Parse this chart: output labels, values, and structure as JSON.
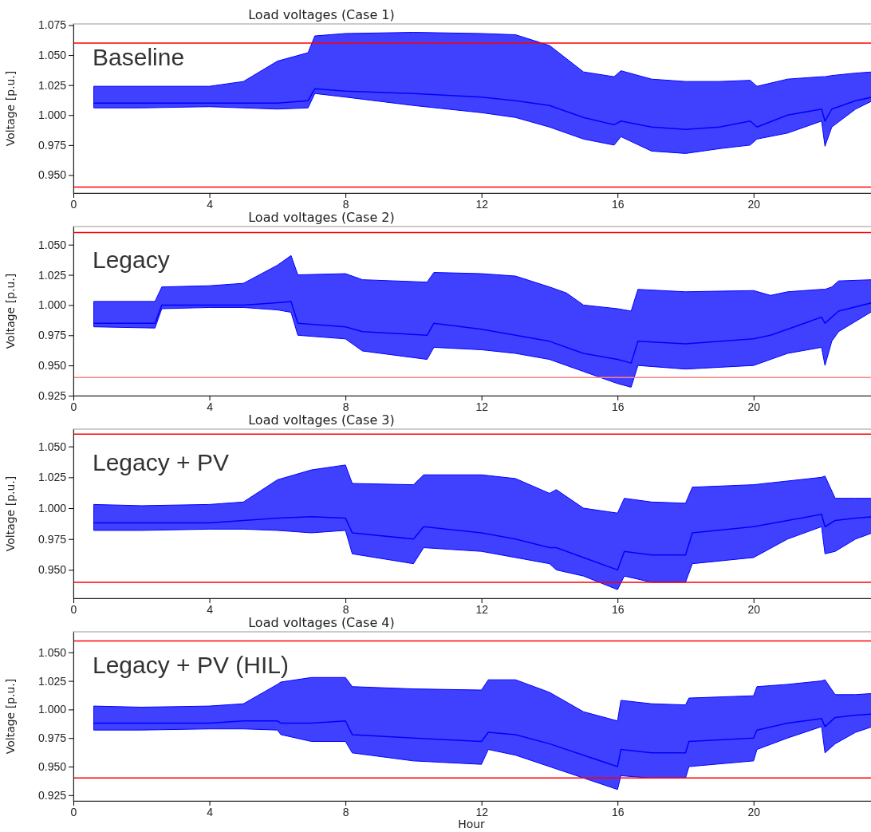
{
  "chart_data": [
    {
      "type": "line",
      "title": "Load voltages (Case 1)",
      "ylabel": "Voltage [p.u.]",
      "annotations": [
        "Baseline"
      ],
      "xlim": [
        0,
        23.5
      ],
      "xticks": [
        0,
        4,
        8,
        12,
        16,
        20
      ],
      "ylim": [
        0.935,
        1.076
      ],
      "yticks": [
        {
          "value": 0.95,
          "label": "0.950"
        },
        {
          "value": 0.975,
          "label": "0.975"
        },
        {
          "value": 1.0,
          "label": "1.000"
        },
        {
          "value": 1.025,
          "label": "1.025"
        },
        {
          "value": 1.05,
          "label": "1.050"
        },
        {
          "value": 1.075,
          "label": "1.075"
        }
      ],
      "grid": false,
      "ref_lines": [
        {
          "axis": "y",
          "value": 1.06,
          "color": "#ff0000"
        },
        {
          "axis": "y",
          "value": 0.94,
          "color": "#ff0000"
        }
      ],
      "series": [
        {
          "color": "#0000ff",
          "x": [
            0.6,
            2,
            4,
            5,
            6,
            6.9,
            7.1,
            8,
            10,
            12,
            13,
            14,
            15,
            15.9,
            16.1,
            17,
            18,
            19,
            19.9,
            20.1,
            21,
            22,
            22.1,
            22.3,
            23,
            23.5
          ],
          "values": [
            1.01,
            1.01,
            1.01,
            1.01,
            1.01,
            1.012,
            1.022,
            1.02,
            1.018,
            1.015,
            1.012,
            1.008,
            0.998,
            0.992,
            0.995,
            0.99,
            0.988,
            0.99,
            0.995,
            0.99,
            1.0,
            1.005,
            0.995,
            1.005,
            1.012,
            1.015
          ],
          "lower": [
            1.006,
            1.006,
            1.007,
            1.006,
            1.005,
            1.006,
            1.018,
            1.015,
            1.008,
            1.002,
            0.998,
            0.99,
            0.98,
            0.975,
            0.982,
            0.97,
            0.968,
            0.972,
            0.975,
            0.98,
            0.985,
            0.995,
            0.974,
            0.99,
            1.005,
            1.012
          ],
          "upper": [
            1.024,
            1.024,
            1.024,
            1.028,
            1.045,
            1.052,
            1.066,
            1.068,
            1.069,
            1.068,
            1.067,
            1.058,
            1.036,
            1.032,
            1.037,
            1.03,
            1.028,
            1.028,
            1.029,
            1.024,
            1.03,
            1.032,
            1.032,
            1.033,
            1.035,
            1.036
          ]
        }
      ]
    },
    {
      "type": "line",
      "title": "Load voltages (Case 2)",
      "ylabel": "Voltage [p.u.]",
      "annotations": [
        "Legacy"
      ],
      "xlim": [
        0,
        23.5
      ],
      "xticks": [
        0,
        4,
        8,
        12,
        16,
        20
      ],
      "ylim": [
        0.925,
        1.065
      ],
      "yticks": [
        {
          "value": 0.925,
          "label": "0.925"
        },
        {
          "value": 0.95,
          "label": "0.950"
        },
        {
          "value": 0.975,
          "label": "0.975"
        },
        {
          "value": 1.0,
          "label": "1.000"
        },
        {
          "value": 1.025,
          "label": "1.025"
        },
        {
          "value": 1.05,
          "label": "1.050"
        }
      ],
      "grid": false,
      "ref_lines": [
        {
          "axis": "y",
          "value": 1.06,
          "color": "#ff0000"
        },
        {
          "axis": "y",
          "value": 0.94,
          "color": "#ff8080"
        }
      ],
      "series": [
        {
          "color": "#0000ff",
          "x": [
            0.6,
            2.4,
            2.6,
            4,
            5,
            6,
            6.4,
            6.6,
            8,
            8.5,
            10.4,
            10.6,
            12,
            13,
            14,
            14.5,
            15,
            16,
            16.4,
            16.6,
            18,
            20,
            20.5,
            21,
            22,
            22.1,
            22.3,
            22.5,
            23.5
          ],
          "values": [
            0.985,
            0.985,
            1.0,
            1.0,
            1.0,
            1.002,
            1.003,
            0.985,
            0.982,
            0.978,
            0.975,
            0.985,
            0.98,
            0.975,
            0.97,
            0.965,
            0.96,
            0.955,
            0.952,
            0.97,
            0.968,
            0.972,
            0.975,
            0.98,
            0.99,
            0.985,
            0.99,
            0.995,
            1.002
          ],
          "lower": [
            0.982,
            0.981,
            0.997,
            0.998,
            0.998,
            0.996,
            0.994,
            0.975,
            0.972,
            0.962,
            0.955,
            0.965,
            0.963,
            0.96,
            0.955,
            0.95,
            0.945,
            0.935,
            0.932,
            0.95,
            0.947,
            0.95,
            0.955,
            0.96,
            0.965,
            0.95,
            0.97,
            0.978,
            0.995
          ],
          "upper": [
            1.003,
            1.003,
            1.015,
            1.016,
            1.018,
            1.033,
            1.041,
            1.025,
            1.026,
            1.021,
            1.019,
            1.027,
            1.026,
            1.024,
            1.015,
            1.01,
            1.0,
            0.997,
            0.995,
            1.013,
            1.011,
            1.012,
            1.008,
            1.011,
            1.013,
            1.013,
            1.015,
            1.02,
            1.021
          ]
        }
      ]
    },
    {
      "type": "line",
      "title": "Load voltages (Case 3)",
      "ylabel": "Voltage [p.u.]",
      "annotations": [
        "Legacy + PV"
      ],
      "xlim": [
        0,
        23.5
      ],
      "xticks": [
        0,
        4,
        8,
        12,
        16,
        20
      ],
      "ylim": [
        0.927,
        1.064
      ],
      "yticks": [
        {
          "value": 0.95,
          "label": "0.950"
        },
        {
          "value": 0.975,
          "label": "0.975"
        },
        {
          "value": 1.0,
          "label": "1.000"
        },
        {
          "value": 1.025,
          "label": "1.025"
        },
        {
          "value": 1.05,
          "label": "1.050"
        }
      ],
      "grid": false,
      "ref_lines": [
        {
          "axis": "y",
          "value": 1.06,
          "color": "#ff0000"
        },
        {
          "axis": "y",
          "value": 0.94,
          "color": "#ff0000"
        }
      ],
      "series": [
        {
          "color": "#0000ff",
          "x": [
            0.6,
            2,
            4,
            5,
            6,
            7,
            8,
            8.2,
            10,
            10.3,
            12,
            13,
            14,
            14.2,
            15,
            16,
            16.2,
            17,
            18,
            18.2,
            20,
            21,
            22,
            22.1,
            22.4,
            23,
            23.5
          ],
          "values": [
            0.988,
            0.988,
            0.988,
            0.99,
            0.992,
            0.993,
            0.992,
            0.98,
            0.975,
            0.985,
            0.98,
            0.975,
            0.968,
            0.968,
            0.96,
            0.95,
            0.965,
            0.962,
            0.962,
            0.98,
            0.985,
            0.99,
            0.995,
            0.985,
            0.99,
            0.992,
            0.993
          ],
          "lower": [
            0.982,
            0.982,
            0.983,
            0.983,
            0.982,
            0.98,
            0.982,
            0.963,
            0.955,
            0.968,
            0.965,
            0.96,
            0.955,
            0.95,
            0.945,
            0.934,
            0.945,
            0.94,
            0.94,
            0.955,
            0.96,
            0.975,
            0.985,
            0.963,
            0.965,
            0.975,
            0.98
          ],
          "upper": [
            1.003,
            1.002,
            1.003,
            1.005,
            1.023,
            1.031,
            1.035,
            1.02,
            1.019,
            1.027,
            1.027,
            1.024,
            1.012,
            1.015,
            1.0,
            0.996,
            1.008,
            1.005,
            1.004,
            1.017,
            1.019,
            1.022,
            1.025,
            1.026,
            1.008,
            1.008,
            1.008
          ]
        }
      ]
    },
    {
      "type": "line",
      "title": "Load voltages (Case 4)",
      "xlabel": "Hour",
      "ylabel": "Voltage [p.u.]",
      "annotations": [
        "Legacy + PV (HIL)"
      ],
      "xlim": [
        0,
        23.5
      ],
      "xticks": [
        0,
        4,
        8,
        12,
        16,
        20
      ],
      "ylim": [
        0.92,
        1.068
      ],
      "yticks": [
        {
          "value": 0.925,
          "label": "0.925"
        },
        {
          "value": 0.95,
          "label": "0.950"
        },
        {
          "value": 0.975,
          "label": "0.975"
        },
        {
          "value": 1.0,
          "label": "1.000"
        },
        {
          "value": 1.025,
          "label": "1.025"
        },
        {
          "value": 1.05,
          "label": "1.050"
        }
      ],
      "grid": false,
      "ref_lines": [
        {
          "axis": "y",
          "value": 1.06,
          "color": "#ff0000"
        },
        {
          "axis": "y",
          "value": 0.94,
          "color": "#ff0000"
        }
      ],
      "series": [
        {
          "color": "#0000ff",
          "x": [
            0.6,
            2,
            4,
            5,
            6,
            6.1,
            7,
            8,
            8.2,
            10,
            12,
            12.2,
            13,
            14,
            15,
            16,
            16.1,
            17,
            18,
            18.1,
            20,
            20.1,
            21,
            22,
            22.1,
            22.4,
            23,
            23.5
          ],
          "values": [
            0.988,
            0.988,
            0.988,
            0.99,
            0.99,
            0.988,
            0.988,
            0.99,
            0.978,
            0.975,
            0.972,
            0.98,
            0.978,
            0.97,
            0.96,
            0.95,
            0.965,
            0.962,
            0.962,
            0.972,
            0.975,
            0.982,
            0.988,
            0.992,
            0.985,
            0.993,
            0.995,
            0.996
          ],
          "lower": [
            0.982,
            0.982,
            0.983,
            0.983,
            0.982,
            0.978,
            0.972,
            0.972,
            0.962,
            0.955,
            0.952,
            0.965,
            0.96,
            0.95,
            0.94,
            0.93,
            0.942,
            0.94,
            0.94,
            0.95,
            0.955,
            0.965,
            0.975,
            0.985,
            0.962,
            0.97,
            0.98,
            0.985
          ],
          "upper": [
            1.003,
            1.002,
            1.003,
            1.005,
            1.022,
            1.024,
            1.028,
            1.028,
            1.02,
            1.018,
            1.017,
            1.026,
            1.026,
            1.015,
            0.998,
            0.99,
            1.008,
            1.005,
            1.004,
            1.01,
            1.012,
            1.02,
            1.022,
            1.025,
            1.026,
            1.013,
            1.013,
            1.014
          ]
        }
      ]
    }
  ]
}
